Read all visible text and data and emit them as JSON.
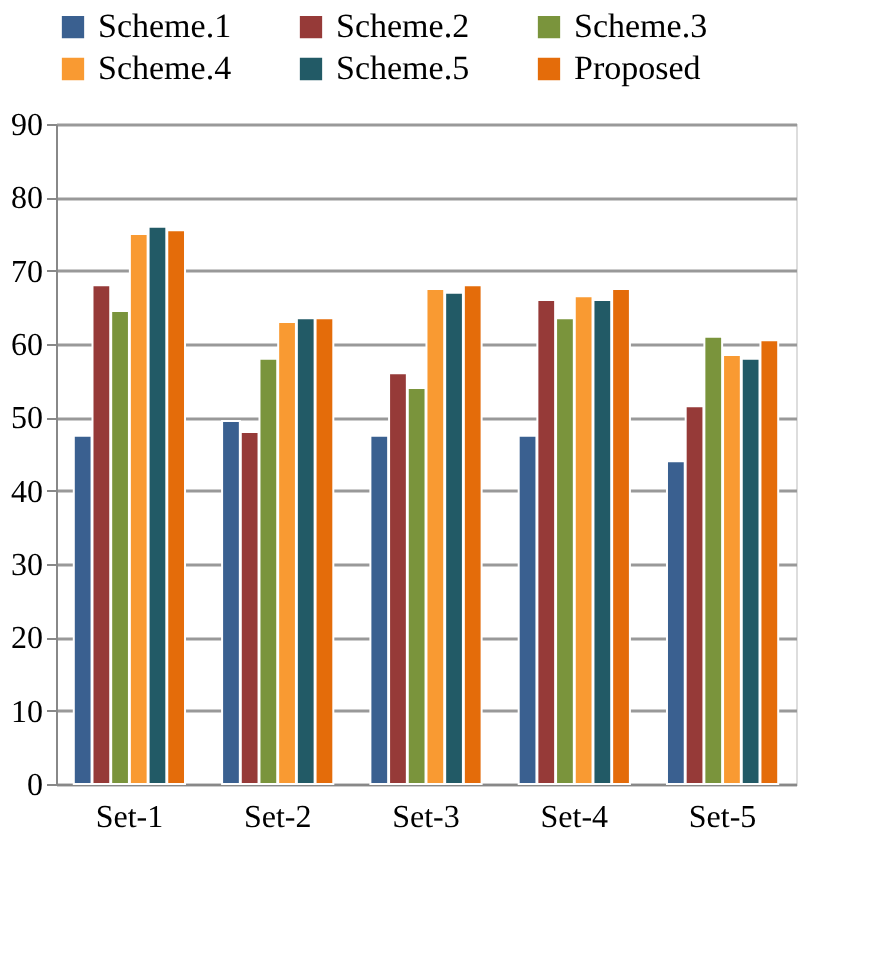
{
  "chart_data": {
    "type": "bar",
    "categories": [
      "Set-1",
      "Set-2",
      "Set-3",
      "Set-4",
      "Set-5"
    ],
    "series": [
      {
        "name": "Scheme.1",
        "color": "#3a6090",
        "values": [
          47.5,
          49.5,
          47.5,
          47.5,
          44
        ]
      },
      {
        "name": "Scheme.2",
        "color": "#963a38",
        "values": [
          68,
          48,
          56,
          66,
          51.5
        ]
      },
      {
        "name": "Scheme.3",
        "color": "#7a943c",
        "values": [
          64.5,
          58,
          54,
          63.5,
          61
        ]
      },
      {
        "name": "Scheme.4",
        "color": "#f99a32",
        "values": [
          75,
          63,
          67.5,
          66.5,
          58.5
        ]
      },
      {
        "name": "Scheme.5",
        "color": "#225a66",
        "values": [
          76,
          63.5,
          67,
          66,
          58
        ]
      },
      {
        "name": "Proposed",
        "color": "#e46c0a",
        "values": [
          75.5,
          63.5,
          68,
          67.5,
          60.5
        ]
      }
    ],
    "ylim": [
      0,
      90
    ],
    "yticks": [
      0,
      10,
      20,
      30,
      40,
      50,
      60,
      70,
      80,
      90
    ],
    "grid": "y",
    "legend": "top"
  }
}
